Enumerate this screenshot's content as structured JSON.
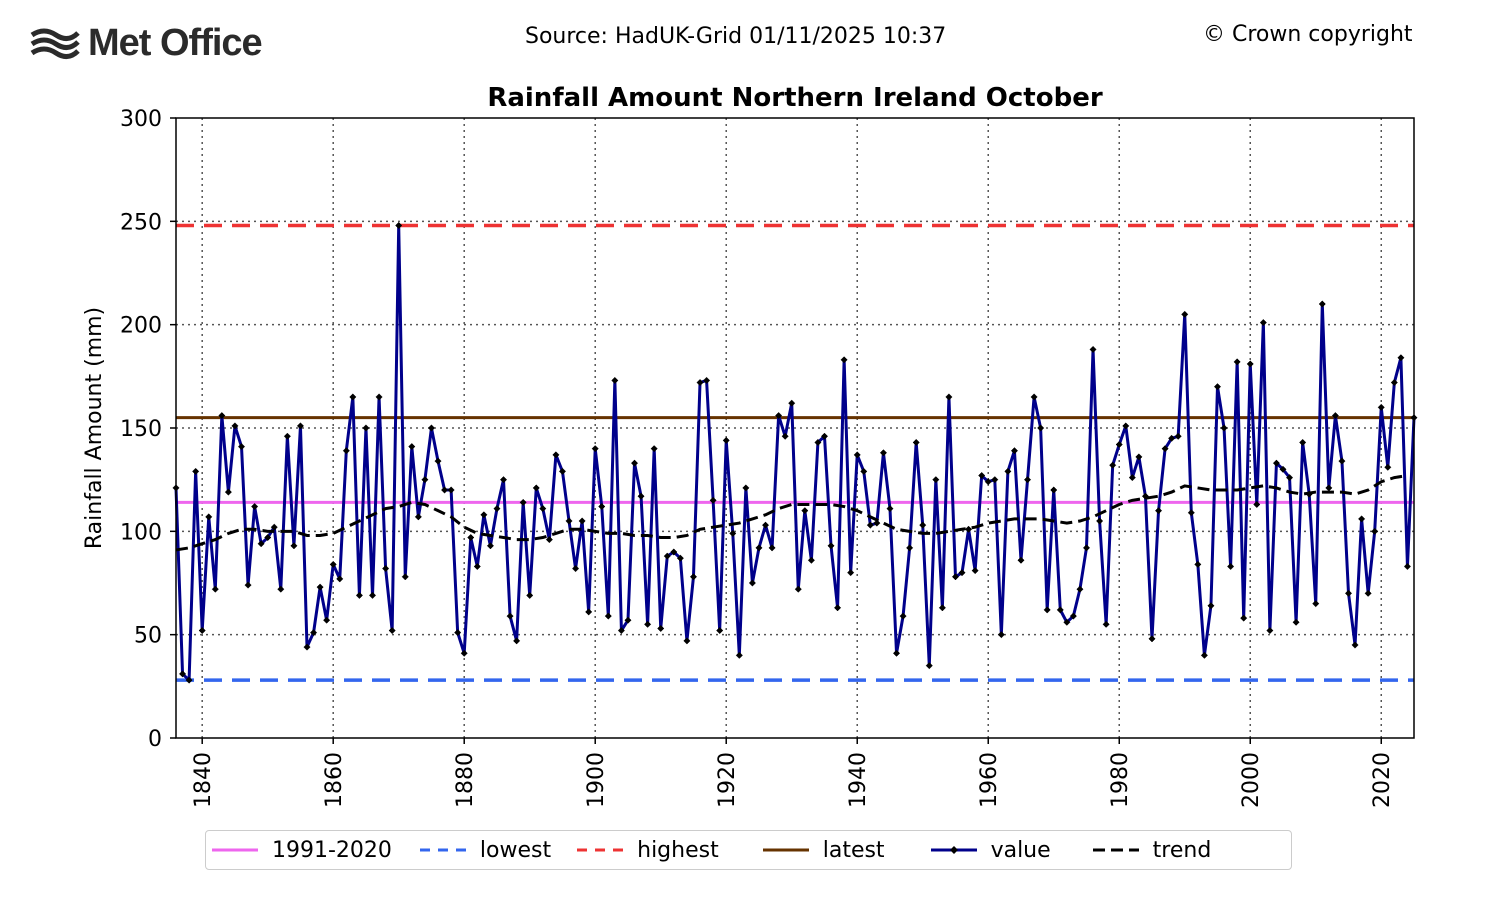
{
  "header": {
    "logo_text": "Met Office",
    "source": "Source: HadUK-Grid 01/11/2025 10:37",
    "copyright": "© Crown copyright"
  },
  "colors": {
    "value": "#00008b",
    "trend": "#000000",
    "highest": "#ee3333",
    "lowest": "#3366ee",
    "latest": "#663300",
    "average": "#ee66ee"
  },
  "legend": [
    {
      "key": "average",
      "label": "1991-2020"
    },
    {
      "key": "lowest",
      "label": "lowest"
    },
    {
      "key": "highest",
      "label": "highest"
    },
    {
      "key": "latest",
      "label": "latest"
    },
    {
      "key": "value",
      "label": "value"
    },
    {
      "key": "trend",
      "label": "trend"
    }
  ],
  "chart_data": {
    "type": "line",
    "title": "Rainfall Amount Northern Ireland October",
    "xlabel": "",
    "ylabel": "Rainfall Amount (mm)",
    "xlim": [
      1836,
      2025
    ],
    "ylim": [
      0,
      300
    ],
    "xticks": [
      1840,
      1860,
      1880,
      1900,
      1920,
      1940,
      1960,
      1980,
      2000,
      2020
    ],
    "yticks": [
      0,
      50,
      100,
      150,
      200,
      250,
      300
    ],
    "grid": true,
    "reference_lines": {
      "1991-2020": 114,
      "lowest": 28,
      "highest": 248,
      "latest": 155
    },
    "series": [
      {
        "name": "value",
        "x_start": 1836,
        "values": [
          121,
          31,
          28,
          129,
          52,
          107,
          72,
          156,
          119,
          151,
          141,
          74,
          112,
          94,
          97,
          102,
          72,
          146,
          93,
          151,
          44,
          51,
          73,
          57,
          84,
          77,
          139,
          165,
          69,
          150,
          69,
          165,
          82,
          52,
          248,
          78,
          141,
          107,
          125,
          150,
          134,
          120,
          120,
          51,
          41,
          97,
          83,
          108,
          93,
          111,
          125,
          59,
          47,
          114,
          69,
          121,
          111,
          96,
          137,
          129,
          105,
          82,
          105,
          61,
          140,
          112,
          59,
          173,
          52,
          57,
          133,
          117,
          55,
          140,
          53,
          88,
          90,
          87,
          47,
          78,
          172,
          173,
          115,
          52,
          144,
          99,
          40,
          121,
          75,
          92,
          103,
          92,
          156,
          146,
          162,
          72,
          110,
          86,
          143,
          146,
          93,
          63,
          183,
          80,
          137,
          129,
          103,
          104,
          138,
          111,
          41,
          59,
          92,
          143,
          103,
          35,
          125,
          63,
          165,
          78,
          80,
          101,
          81,
          127,
          124,
          125,
          50,
          129,
          139,
          86,
          125,
          165,
          150,
          62,
          120,
          62,
          56,
          59,
          72,
          92,
          188,
          105,
          55,
          132,
          142,
          151,
          126,
          136,
          117,
          48,
          110,
          140,
          145,
          146,
          205,
          109,
          84,
          40,
          64,
          170,
          150,
          83,
          182,
          58,
          181,
          113,
          201,
          52,
          133,
          130,
          126,
          56,
          143,
          118,
          65,
          210,
          121,
          156,
          134,
          70,
          45,
          106,
          70,
          100,
          160,
          131,
          172,
          184,
          83,
          155
        ]
      },
      {
        "name": "trend",
        "x": [
          1836,
          1838,
          1840,
          1842,
          1844,
          1846,
          1848,
          1850,
          1852,
          1854,
          1856,
          1858,
          1860,
          1862,
          1864,
          1866,
          1868,
          1870,
          1872,
          1874,
          1876,
          1878,
          1880,
          1882,
          1884,
          1886,
          1888,
          1890,
          1892,
          1894,
          1896,
          1898,
          1900,
          1902,
          1904,
          1906,
          1908,
          1910,
          1912,
          1914,
          1916,
          1918,
          1920,
          1922,
          1924,
          1926,
          1928,
          1930,
          1932,
          1934,
          1936,
          1938,
          1940,
          1942,
          1944,
          1946,
          1948,
          1950,
          1952,
          1954,
          1956,
          1958,
          1960,
          1962,
          1964,
          1966,
          1968,
          1970,
          1972,
          1974,
          1976,
          1978,
          1980,
          1982,
          1984,
          1986,
          1988,
          1990,
          1992,
          1994,
          1996,
          1998,
          2000,
          2002,
          2004,
          2006,
          2008,
          2010,
          2012,
          2014,
          2016,
          2018,
          2020,
          2022,
          2024
        ],
        "values": [
          91,
          92,
          94,
          96,
          99,
          101,
          101,
          100,
          100,
          100,
          98,
          98,
          99,
          102,
          105,
          108,
          111,
          112,
          114,
          113,
          110,
          107,
          102,
          99,
          98,
          97,
          96,
          96,
          97,
          99,
          101,
          101,
          100,
          99,
          99,
          98,
          98,
          97,
          97,
          98,
          101,
          102,
          103,
          104,
          106,
          108,
          111,
          113,
          113,
          113,
          113,
          112,
          110,
          107,
          104,
          101,
          100,
          99,
          99,
          100,
          101,
          102,
          104,
          105,
          106,
          106,
          106,
          105,
          104,
          105,
          107,
          110,
          113,
          115,
          116,
          117,
          119,
          122,
          121,
          120,
          120,
          120,
          121,
          122,
          121,
          119,
          118,
          119,
          119,
          119,
          118,
          120,
          124,
          126,
          127
        ]
      }
    ]
  }
}
